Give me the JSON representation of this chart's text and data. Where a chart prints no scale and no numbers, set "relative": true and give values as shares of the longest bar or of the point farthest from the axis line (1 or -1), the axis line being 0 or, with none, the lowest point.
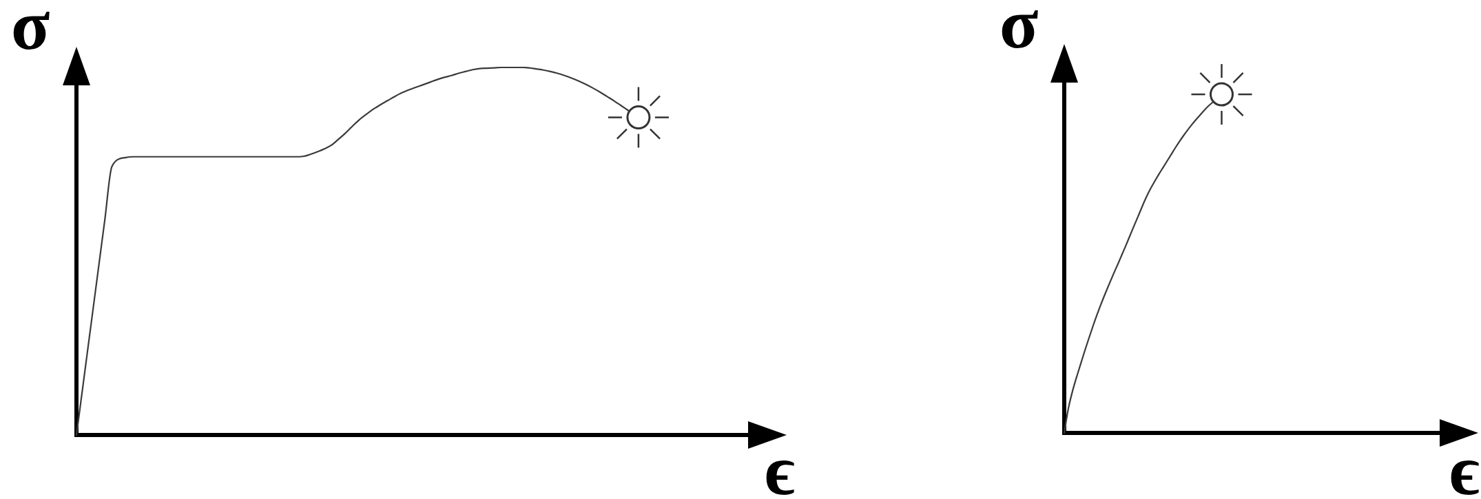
{
  "chart_data": [
    {
      "type": "line",
      "relative": true,
      "xlabel": "ϵ",
      "ylabel": "σ",
      "color": "#3a3a3a",
      "categories": [
        null,
        null,
        null,
        null,
        null,
        null,
        null,
        null,
        null,
        null,
        null,
        null,
        null,
        null,
        null,
        null,
        null,
        null,
        null,
        null,
        null,
        null,
        null,
        null,
        null,
        null,
        null,
        null,
        null,
        null,
        null,
        null,
        null,
        null,
        null,
        null,
        null,
        null,
        null,
        null,
        null,
        null,
        null,
        null,
        null,
        null,
        null,
        null,
        null,
        null,
        null,
        null,
        null,
        null,
        null,
        null,
        null,
        null,
        null,
        null,
        null,
        null,
        null,
        null,
        null,
        null,
        null,
        null,
        null,
        null,
        null,
        null,
        null,
        null,
        null,
        null,
        null,
        null,
        null
      ],
      "values": [
        0,
        0.146,
        0.292,
        0.438,
        0.584,
        0.73,
        0.751,
        0.755,
        0.757,
        0.757,
        0.757,
        0.757,
        0.757,
        0.757,
        0.757,
        0.757,
        0.757,
        0.757,
        0.757,
        0.757,
        0.757,
        0.757,
        0.757,
        0.757,
        0.757,
        0.757,
        0.757,
        0.757,
        0.757,
        0.757,
        0.757,
        0.757,
        0.758,
        0.763,
        0.77,
        0.778,
        0.788,
        0.804,
        0.821,
        0.84,
        0.858,
        0.873,
        0.887,
        0.899,
        0.91,
        0.921,
        0.931,
        0.939,
        0.946,
        0.953,
        0.96,
        0.967,
        0.973,
        0.978,
        0.984,
        0.989,
        0.994,
        0.997,
        0.998,
        0.999,
        1,
        1,
        1,
        1,
        0.999,
        0.996,
        0.993,
        0.989,
        0.984,
        0.978,
        0.971,
        0.963,
        0.954,
        0.944,
        0.933,
        0.921,
        0.909,
        0.896,
        0.883
      ]
    },
    {
      "type": "line",
      "relative": true,
      "xlabel": "ϵ",
      "ylabel": "σ",
      "color": "#3a3a3a",
      "categories": [
        null,
        null,
        null,
        null,
        null,
        null,
        null,
        null,
        null,
        null,
        null,
        null,
        null,
        null,
        null,
        null,
        null,
        null,
        null,
        null,
        null,
        null,
        null,
        null,
        null,
        null,
        null,
        null,
        null,
        null,
        null,
        null,
        null,
        null,
        null,
        null,
        null
      ],
      "values": [
        0,
        0.074,
        0.126,
        0.169,
        0.209,
        0.249,
        0.287,
        0.324,
        0.359,
        0.392,
        0.423,
        0.453,
        0.482,
        0.51,
        0.539,
        0.568,
        0.598,
        0.628,
        0.657,
        0.687,
        0.715,
        0.74,
        0.762,
        0.783,
        0.803,
        0.823,
        0.843,
        0.863,
        0.882,
        0.9,
        0.917,
        0.933,
        0.948,
        0.962,
        0.976,
        0.989,
        1
      ]
    }
  ]
}
